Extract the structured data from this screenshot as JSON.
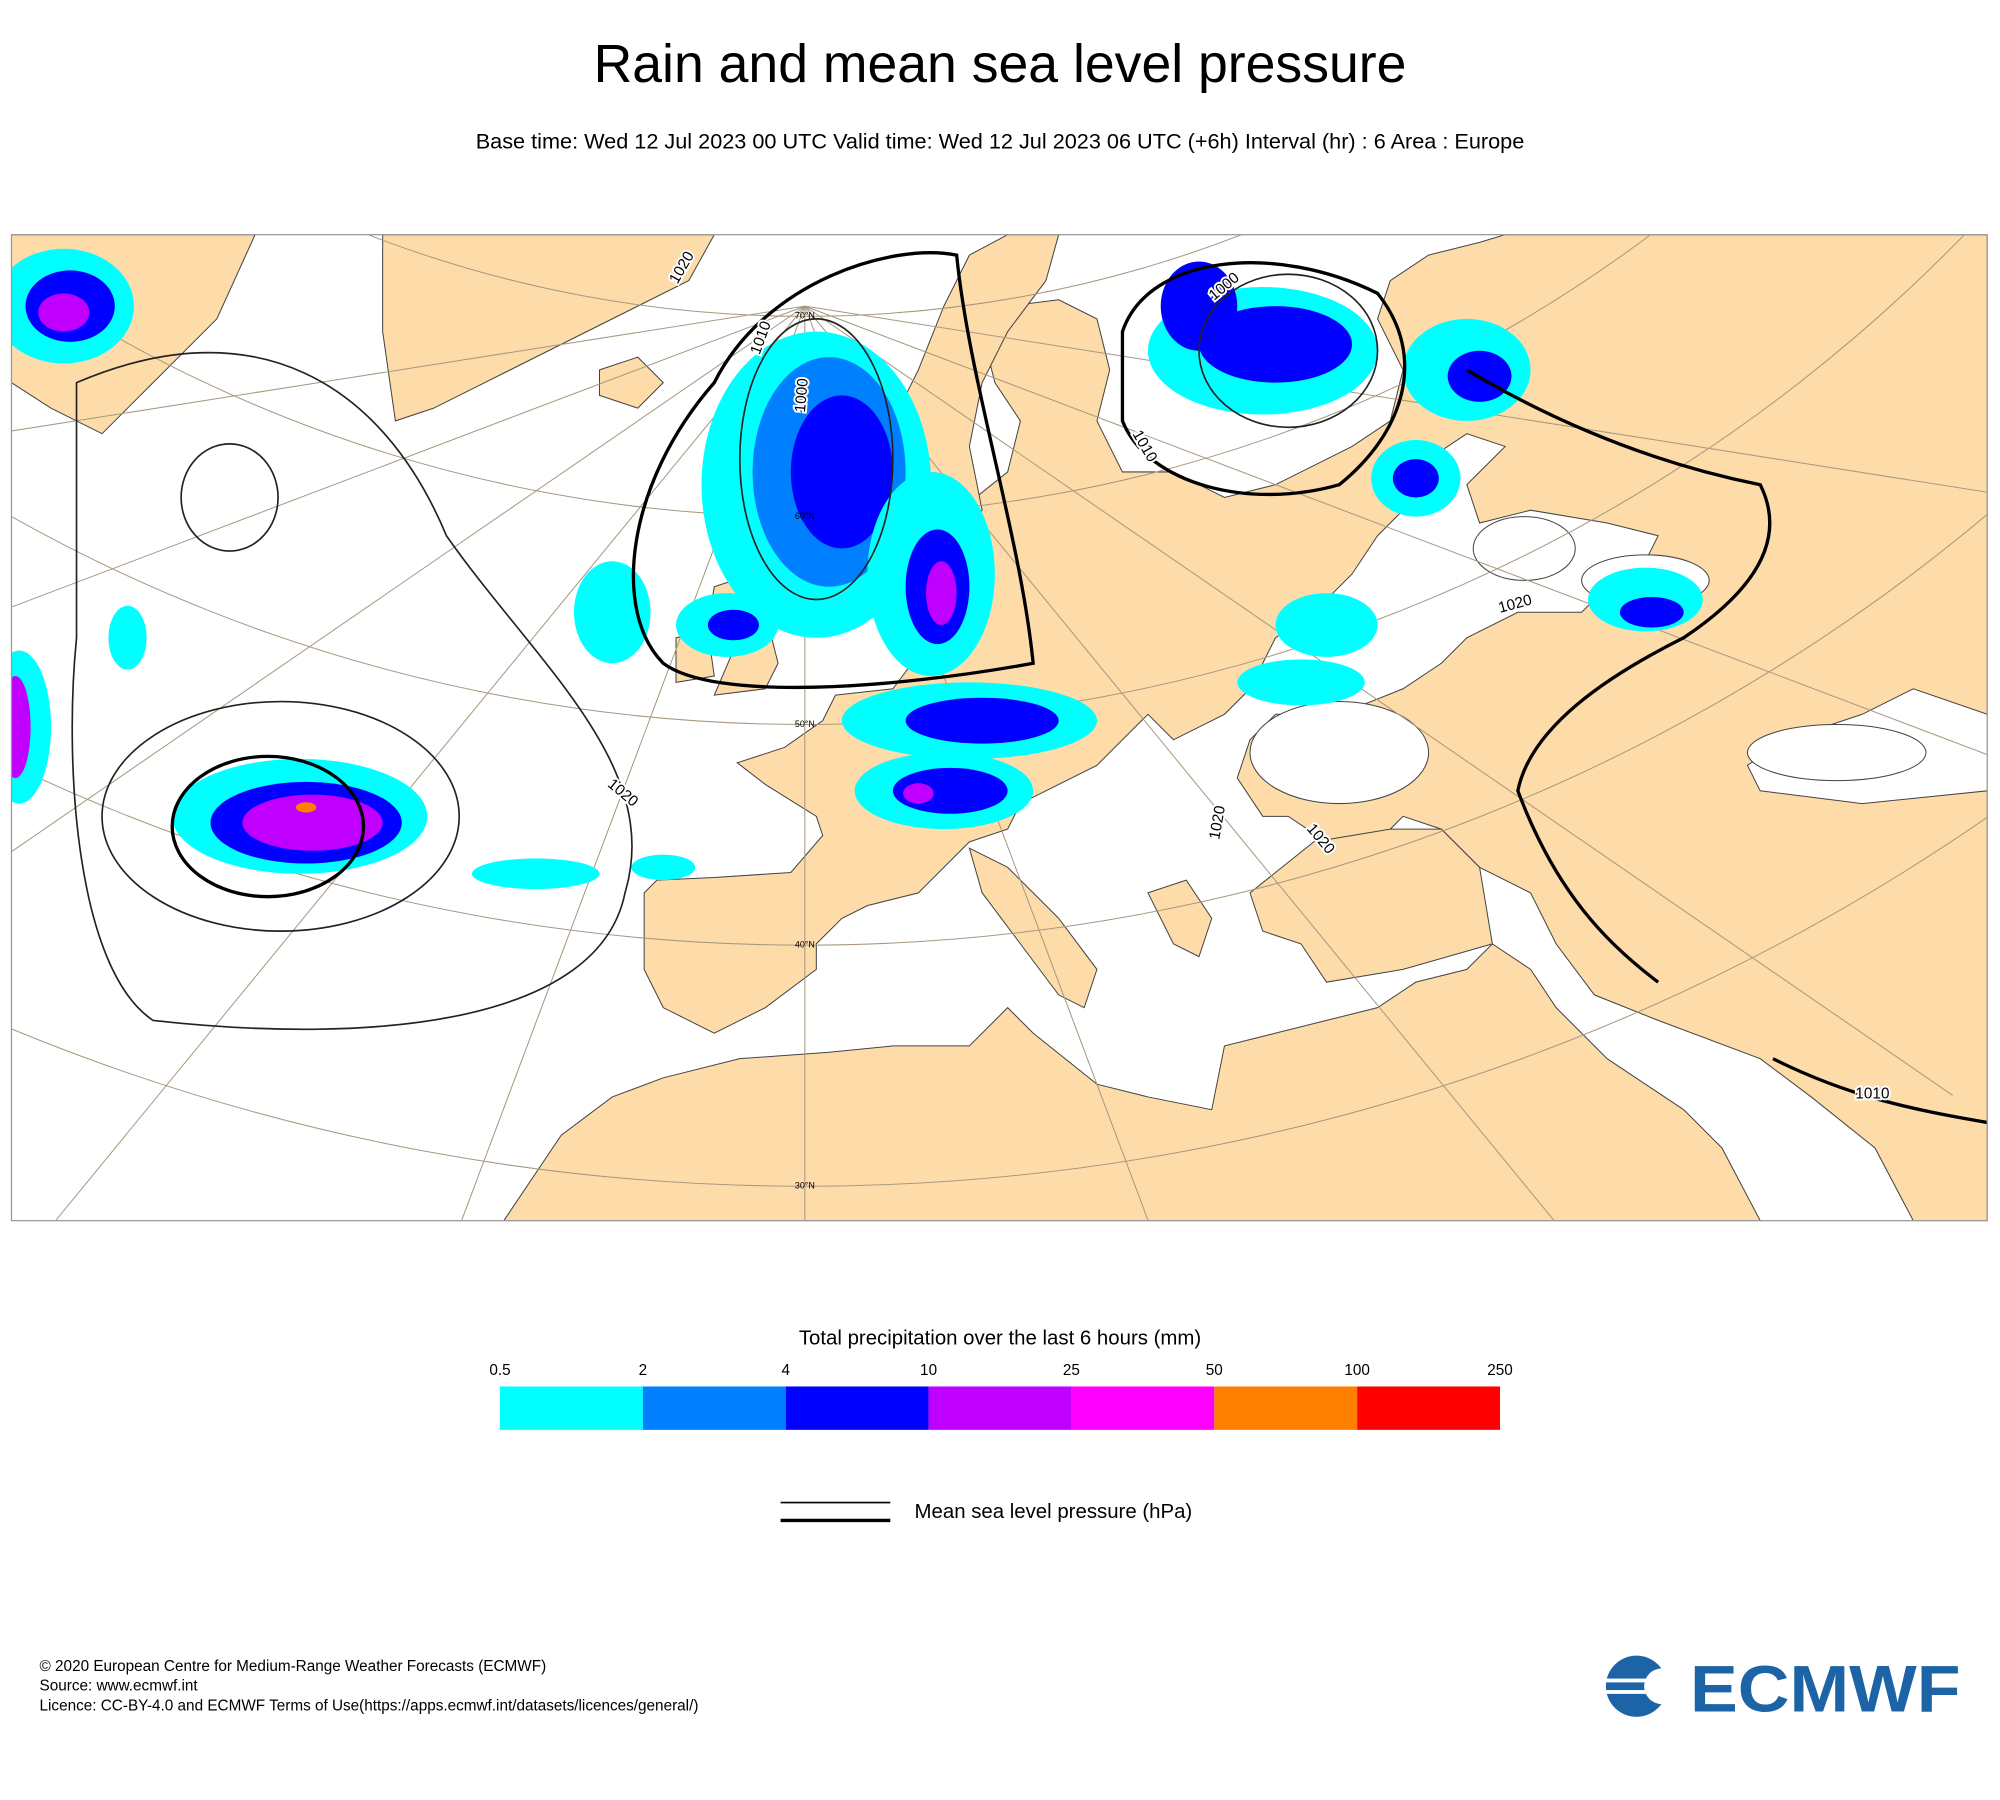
{
  "header": {
    "title": "Rain and mean sea level pressure",
    "subtitle": "Base time: Wed 12 Jul 2023 00 UTC Valid time: Wed 12 Jul 2023 06 UTC (+6h) Interval (hr) : 6 Area : Europe"
  },
  "map": {
    "latitude_labels": [
      "70°N",
      "60°N",
      "50°N",
      "40°N",
      "30°N"
    ],
    "isobar_labels": [
      "1020",
      "1010",
      "1000",
      "1000",
      "1010",
      "1020",
      "1020",
      "1020",
      "1020",
      "1010"
    ]
  },
  "legend": {
    "precip_title": "Total precipitation over the last 6 hours (mm)",
    "levels": [
      0.5,
      2,
      4,
      10,
      25,
      50,
      100,
      250
    ],
    "colors": [
      "#00ffff",
      "#0080ff",
      "#0000ff",
      "#c000ff",
      "#ff00ff",
      "#ff8000",
      "#ff0000"
    ],
    "pressure_label": "Mean sea level pressure (hPa)"
  },
  "footer": {
    "lines": [
      "© 2020 European Centre for Medium-Range Weather Forecasts (ECMWF)",
      "Source: www.ecmwf.int",
      "Licence: CC-BY-4.0 and ECMWF Terms of Use(https://apps.ecmwf.int/datasets/licences/general/)"
    ],
    "logo": "ECMWF"
  }
}
